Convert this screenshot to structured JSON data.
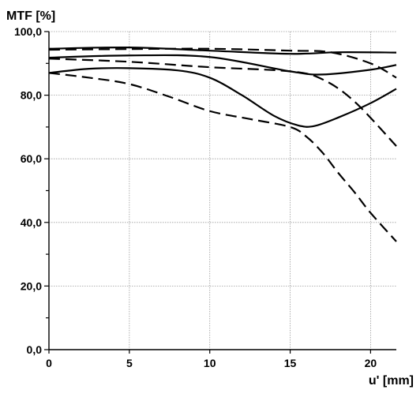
{
  "chart_data": {
    "type": "line",
    "ylabel": "MTF [%]",
    "xlabel": "u' [mm]",
    "xlim": [
      0,
      21.6
    ],
    "ylim": [
      0,
      100
    ],
    "x_ticks": [
      0,
      5,
      10,
      15,
      20
    ],
    "x_tick_labels": [
      "0",
      "5",
      "10",
      "15",
      "20"
    ],
    "y_ticks": [
      0,
      20,
      40,
      60,
      80,
      100
    ],
    "y_tick_labels": [
      "0,0",
      "20,0",
      "40,0",
      "60,0",
      "80,0",
      "100,0"
    ],
    "y_minor_step": 10,
    "grid": true,
    "legend": "none",
    "series": [
      {
        "style": "solid",
        "x": [
          0,
          5,
          10,
          15,
          18,
          21.6
        ],
        "y": [
          94.6,
          95.0,
          94.0,
          93.0,
          93.5,
          93.4
        ]
      },
      {
        "style": "dashed",
        "x": [
          0,
          5,
          10,
          15,
          17.5,
          20,
          21.6
        ],
        "y": [
          94.3,
          94.5,
          94.6,
          94.0,
          93.5,
          90.0,
          85.5
        ]
      },
      {
        "style": "solid",
        "x": [
          0,
          5,
          10,
          15,
          17,
          20,
          21.6
        ],
        "y": [
          91.8,
          92.5,
          92.0,
          87.5,
          86.5,
          88.0,
          89.5
        ]
      },
      {
        "style": "dashed",
        "x": [
          0,
          5,
          10,
          15,
          17,
          19,
          21.6
        ],
        "y": [
          91.5,
          90.5,
          88.8,
          87.5,
          85.0,
          78.0,
          64.0
        ]
      },
      {
        "style": "solid",
        "x": [
          0,
          2.5,
          5,
          8,
          10,
          12,
          14,
          15.5,
          16.5,
          18,
          20,
          21.6
        ],
        "y": [
          87.0,
          88.3,
          88.5,
          87.8,
          85.5,
          80.0,
          73.5,
          70.5,
          70.3,
          73.0,
          77.5,
          82.0
        ]
      },
      {
        "style": "dashed",
        "x": [
          0,
          2.5,
          5,
          7.5,
          10,
          12.5,
          15,
          16,
          17,
          18,
          19,
          20,
          21.6
        ],
        "y": [
          87.0,
          85.5,
          83.5,
          79.5,
          75.0,
          72.5,
          70.0,
          67.0,
          62.0,
          55.5,
          49.5,
          43.0,
          34.0
        ]
      }
    ]
  }
}
